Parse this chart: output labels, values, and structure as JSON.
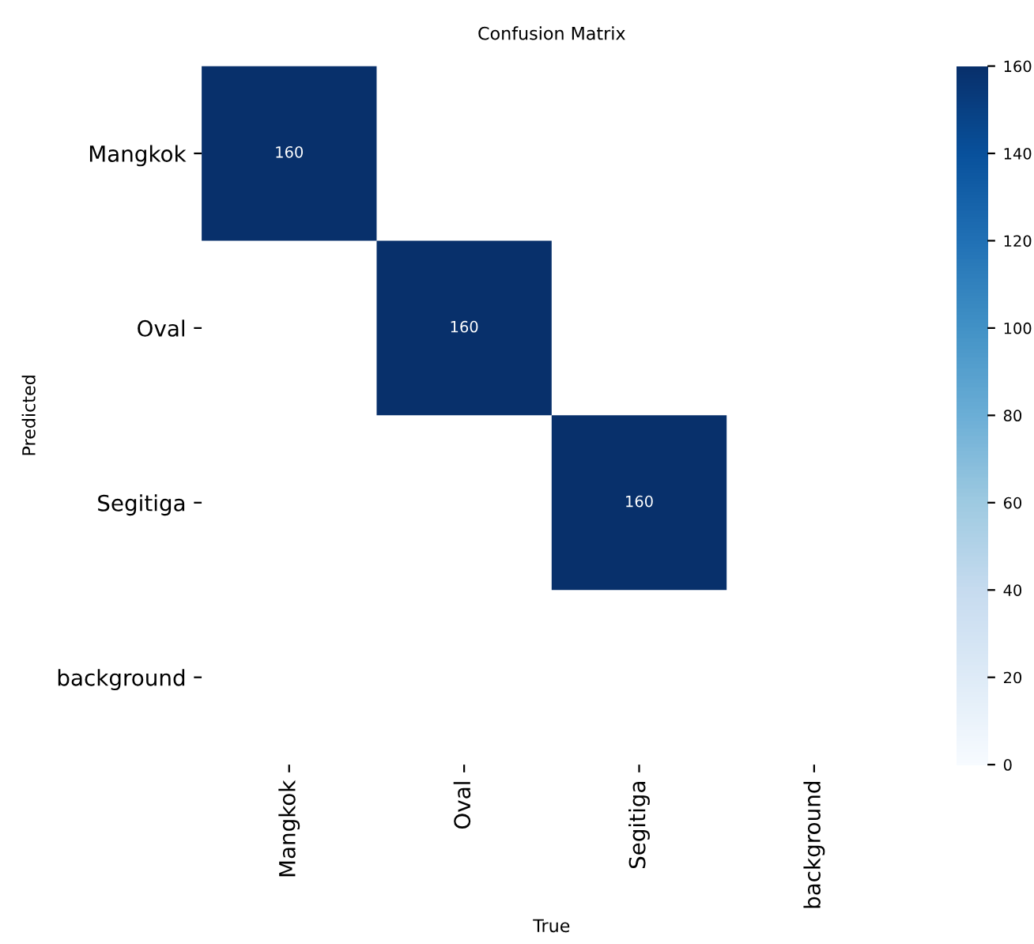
{
  "chart_data": {
    "type": "heatmap",
    "title": "Confusion Matrix",
    "xlabel": "True",
    "ylabel": "Predicted",
    "categories": [
      "Mangkok",
      "Oval",
      "Segitiga",
      "background"
    ],
    "y_categories": [
      "Mangkok",
      "Oval",
      "Segitiga",
      "background"
    ],
    "cells": [
      [
        160,
        null,
        null,
        null
      ],
      [
        null,
        160,
        null,
        null
      ],
      [
        null,
        null,
        160,
        null
      ],
      [
        null,
        null,
        null,
        null
      ]
    ],
    "clim": [
      0,
      160
    ],
    "cticks": [
      0,
      20,
      40,
      60,
      80,
      100,
      120,
      140,
      160
    ],
    "data_labels": true
  }
}
